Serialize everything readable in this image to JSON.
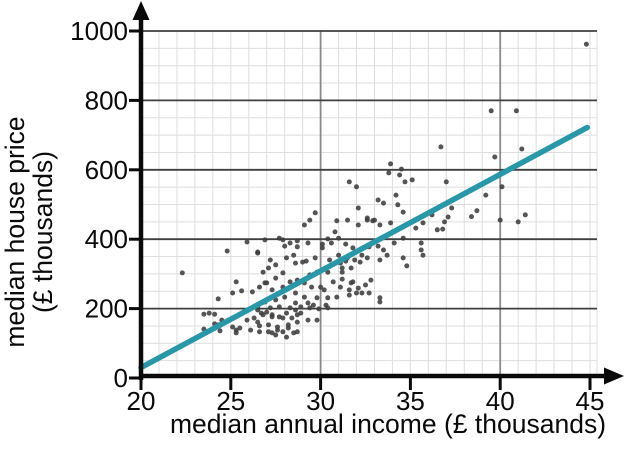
{
  "chart_data": {
    "type": "scatter",
    "title": "",
    "xlabel": "median annual income (£ thousands)",
    "ylabel_line1": "median house price",
    "ylabel_line2": "(£ thousands)",
    "xlim": [
      20,
      45.4
    ],
    "ylim": [
      0,
      1000
    ],
    "x_ticks": [
      20,
      25,
      30,
      35,
      40,
      45
    ],
    "y_ticks": [
      0,
      200,
      400,
      600,
      800,
      1000
    ],
    "x_minor_step": 1,
    "y_minor_step": 50,
    "x_major_gridlines": [
      30,
      40
    ],
    "y_major_gridlines": [
      200,
      400,
      600,
      800,
      1000
    ],
    "grid": true,
    "legend": "none",
    "colors": {
      "background": "#ffffff",
      "axis": "#0a0a0a",
      "text": "#0a0a0a",
      "minor_grid": "#dedede",
      "major_grid_h": "#3f3f3f",
      "major_grid_v": "#8a8a8a",
      "points": "#3d3d3d",
      "trendline": "#2897a8"
    },
    "trendline": {
      "x1": 20,
      "y1": 30,
      "x2": 44.85,
      "y2": 722
    },
    "points": [
      [
        22.3,
        303
      ],
      [
        23.5,
        184
      ],
      [
        23.8,
        187
      ],
      [
        24.1,
        184
      ],
      [
        24.3,
        228
      ],
      [
        24.5,
        167
      ],
      [
        24.1,
        156
      ],
      [
        23.5,
        141
      ],
      [
        24.4,
        136
      ],
      [
        24.3,
        153
      ],
      [
        24.8,
        366
      ],
      [
        25.9,
        392
      ],
      [
        26.5,
        363
      ],
      [
        25.3,
        277
      ],
      [
        25.6,
        251
      ],
      [
        25.1,
        245
      ],
      [
        25.1,
        147
      ],
      [
        25.5,
        144
      ],
      [
        25.3,
        130
      ],
      [
        26.1,
        138
      ],
      [
        26.3,
        173
      ],
      [
        26.6,
        150
      ],
      [
        25.3,
        138
      ],
      [
        25.9,
        167
      ],
      [
        26.6,
        133
      ],
      [
        26.9,
        274
      ],
      [
        26.2,
        248
      ],
      [
        27.1,
        133
      ],
      [
        27.3,
        130
      ],
      [
        27.6,
        138
      ],
      [
        27.9,
        133
      ],
      [
        28.2,
        144
      ],
      [
        28.5,
        130
      ],
      [
        28.7,
        133
      ],
      [
        27.7,
        176
      ],
      [
        28.1,
        187
      ],
      [
        28.4,
        173
      ],
      [
        26.5,
        196
      ],
      [
        26.7,
        187
      ],
      [
        27.0,
        190
      ],
      [
        27.3,
        182
      ],
      [
        28.6,
        196
      ],
      [
        28.9,
        187
      ],
      [
        28.7,
        182
      ],
      [
        28.6,
        216
      ],
      [
        29.3,
        216
      ],
      [
        29.6,
        210
      ],
      [
        29.9,
        199
      ],
      [
        30.3,
        210
      ],
      [
        33.3,
        219
      ],
      [
        26.5,
        360
      ],
      [
        27.2,
        340
      ],
      [
        27.1,
        317
      ],
      [
        26.8,
        305
      ],
      [
        27.5,
        326
      ],
      [
        28.0,
        380
      ],
      [
        28.3,
        389
      ],
      [
        28.7,
        378
      ],
      [
        28.5,
        354
      ],
      [
        28.1,
        346
      ],
      [
        28.6,
        331
      ],
      [
        29.0,
        334
      ],
      [
        27.9,
        303
      ],
      [
        27.5,
        288
      ],
      [
        27.0,
        274
      ],
      [
        26.6,
        262
      ],
      [
        27.3,
        254
      ],
      [
        27.9,
        262
      ],
      [
        28.3,
        277
      ],
      [
        28.7,
        282
      ],
      [
        29.2,
        337
      ],
      [
        29.7,
        346
      ],
      [
        30.1,
        386
      ],
      [
        30.6,
        389
      ],
      [
        31.0,
        354
      ],
      [
        30.5,
        340
      ],
      [
        31.4,
        337
      ],
      [
        31.9,
        340
      ],
      [
        31.7,
        317
      ],
      [
        31.2,
        305
      ],
      [
        30.4,
        305
      ],
      [
        29.8,
        305
      ],
      [
        29.4,
        297
      ],
      [
        29.1,
        274
      ],
      [
        29.5,
        262
      ],
      [
        30.0,
        262
      ],
      [
        30.2,
        254
      ],
      [
        30.7,
        277
      ],
      [
        31.1,
        262
      ],
      [
        31.7,
        274
      ],
      [
        32.1,
        259
      ],
      [
        32.5,
        268
      ],
      [
        32.8,
        282
      ],
      [
        32.3,
        245
      ],
      [
        31.6,
        239
      ],
      [
        30.9,
        233
      ],
      [
        30.4,
        231
      ],
      [
        29.8,
        231
      ],
      [
        29.1,
        233
      ],
      [
        28.6,
        245
      ],
      [
        28.0,
        233
      ],
      [
        27.5,
        225
      ],
      [
        26.9,
        219
      ],
      [
        26.5,
        205
      ],
      [
        27.2,
        202
      ],
      [
        27.7,
        205
      ],
      [
        28.3,
        202
      ],
      [
        28.9,
        205
      ],
      [
        29.4,
        202
      ],
      [
        30.4,
        202
      ],
      [
        26.8,
        182
      ],
      [
        27.3,
        176
      ],
      [
        27.9,
        173
      ],
      [
        26.5,
        161
      ],
      [
        27.1,
        153
      ],
      [
        27.6,
        147
      ],
      [
        28.2,
        153
      ],
      [
        28.7,
        161
      ],
      [
        29.3,
        167
      ],
      [
        29.8,
        167
      ],
      [
        27.5,
        124
      ],
      [
        28.1,
        118
      ],
      [
        31.6,
        565
      ],
      [
        32.0,
        551
      ],
      [
        32.1,
        490
      ],
      [
        29.7,
        476
      ],
      [
        29.1,
        441
      ],
      [
        29.4,
        455
      ],
      [
        30.9,
        453
      ],
      [
        31.5,
        455
      ],
      [
        32.1,
        441
      ],
      [
        32.6,
        455
      ],
      [
        32.9,
        453
      ],
      [
        30.4,
        401
      ],
      [
        30.8,
        421
      ],
      [
        31.0,
        403
      ],
      [
        26.9,
        398
      ],
      [
        27.7,
        403
      ],
      [
        27.9,
        398
      ],
      [
        28.7,
        395
      ],
      [
        29.3,
        389
      ],
      [
        30.1,
        375
      ],
      [
        31.4,
        386
      ],
      [
        31.8,
        375
      ],
      [
        32.3,
        354
      ],
      [
        31.5,
        346
      ],
      [
        31.1,
        331
      ],
      [
        31.2,
        317
      ],
      [
        32.2,
        334
      ],
      [
        32.6,
        346
      ],
      [
        32.7,
        378
      ],
      [
        33.2,
        380
      ],
      [
        33.5,
        369
      ],
      [
        33.7,
        354
      ],
      [
        33.3,
        340
      ],
      [
        34.1,
        389
      ],
      [
        34.6,
        346
      ],
      [
        34.8,
        323
      ],
      [
        35.6,
        389
      ],
      [
        35.7,
        354
      ],
      [
        31.2,
        285
      ],
      [
        31.8,
        277
      ],
      [
        32.0,
        245
      ],
      [
        32.7,
        245
      ],
      [
        33.3,
        231
      ],
      [
        31.6,
        254
      ],
      [
        36.7,
        666
      ],
      [
        33.9,
        617
      ],
      [
        33.8,
        591
      ],
      [
        34.5,
        602
      ],
      [
        34.4,
        585
      ],
      [
        34.7,
        565
      ],
      [
        35.1,
        571
      ],
      [
        37.0,
        565
      ],
      [
        34.2,
        527
      ],
      [
        34.3,
        499
      ],
      [
        33.2,
        513
      ],
      [
        33.5,
        504
      ],
      [
        33.0,
        455
      ],
      [
        33.3,
        441
      ],
      [
        32.6,
        461
      ],
      [
        33.9,
        447
      ],
      [
        34.6,
        478
      ],
      [
        34.6,
        403
      ],
      [
        35.3,
        432
      ],
      [
        35.7,
        447
      ],
      [
        36.2,
        470
      ],
      [
        37.3,
        490
      ],
      [
        36.9,
        450
      ],
      [
        36.8,
        429
      ],
      [
        36.5,
        427
      ],
      [
        35.6,
        369
      ],
      [
        38.4,
        465
      ],
      [
        38.7,
        482
      ],
      [
        39.2,
        527
      ],
      [
        39.5,
        770
      ],
      [
        40.9,
        770
      ],
      [
        41.2,
        660
      ],
      [
        39.7,
        637
      ],
      [
        40.1,
        551
      ],
      [
        40.0,
        455
      ],
      [
        41.0,
        450
      ],
      [
        41.4,
        470
      ],
      [
        37.1,
        464
      ],
      [
        44.8,
        962
      ]
    ]
  }
}
